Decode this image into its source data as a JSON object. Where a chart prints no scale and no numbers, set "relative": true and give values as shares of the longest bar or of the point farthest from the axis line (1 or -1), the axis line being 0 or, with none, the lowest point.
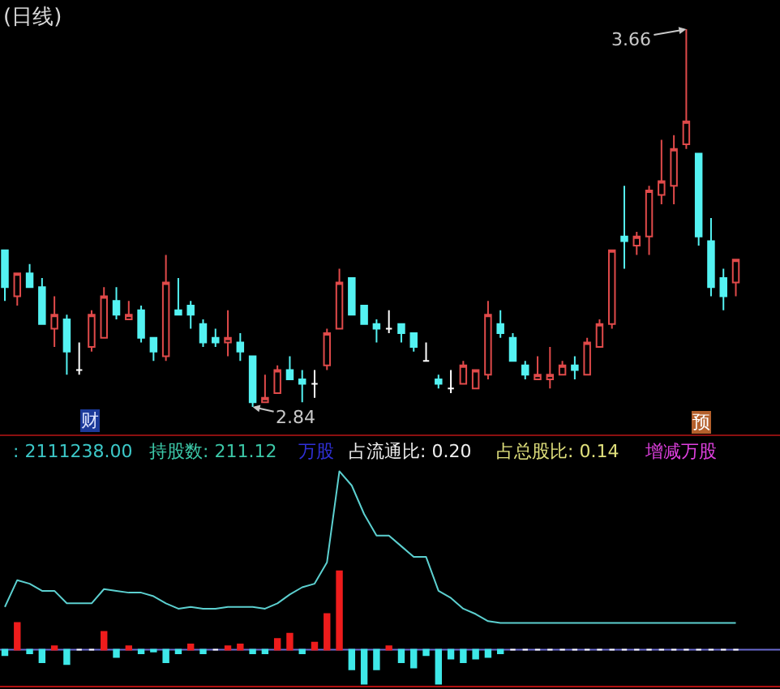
{
  "chart_data": [
    {
      "type": "candlestick",
      "title": "(日线)",
      "categories": [
        null,
        null,
        null,
        null,
        null,
        null,
        null,
        null,
        null,
        null,
        null,
        null,
        null,
        null,
        null,
        null,
        null,
        null,
        null,
        null,
        null,
        null,
        null,
        null,
        null,
        null,
        null,
        null,
        null,
        null,
        null,
        null,
        null,
        null,
        null,
        null,
        null,
        null,
        null,
        null,
        null,
        null,
        null,
        null,
        null,
        null,
        null,
        null,
        null,
        null,
        null,
        null,
        null,
        null,
        null,
        null,
        null,
        null,
        null,
        null
      ],
      "ohlc": [
        [
          3.18,
          3.18,
          3.07,
          3.1
        ],
        [
          3.08,
          3.13,
          3.06,
          3.13
        ],
        [
          3.13,
          3.15,
          3.1,
          3.1
        ],
        [
          3.1,
          3.12,
          3.02,
          3.02
        ],
        [
          3.01,
          3.08,
          2.97,
          3.04
        ],
        [
          3.03,
          3.04,
          2.91,
          2.96
        ],
        [
          2.92,
          2.98,
          2.91,
          2.92
        ],
        [
          2.97,
          3.05,
          2.96,
          3.04
        ],
        [
          2.99,
          3.1,
          2.99,
          3.08
        ],
        [
          3.07,
          3.1,
          3.03,
          3.04
        ],
        [
          3.03,
          3.07,
          3.03,
          3.04
        ],
        [
          3.05,
          3.06,
          2.98,
          2.99
        ],
        [
          2.99,
          2.99,
          2.94,
          2.96
        ],
        [
          2.95,
          3.17,
          2.94,
          3.11
        ],
        [
          3.05,
          3.12,
          3.04,
          3.04
        ],
        [
          3.06,
          3.07,
          3.01,
          3.04
        ],
        [
          3.02,
          3.03,
          2.97,
          2.98
        ],
        [
          2.99,
          3.01,
          2.97,
          2.98
        ],
        [
          2.98,
          3.05,
          2.95,
          2.99
        ],
        [
          2.98,
          3.0,
          2.94,
          2.96
        ],
        [
          2.95,
          2.95,
          2.84,
          2.85
        ],
        [
          2.85,
          2.91,
          2.85,
          2.86
        ],
        [
          2.87,
          2.93,
          2.87,
          2.92
        ],
        [
          2.92,
          2.95,
          2.9,
          2.9
        ],
        [
          2.9,
          2.92,
          2.85,
          2.89
        ],
        [
          2.89,
          2.92,
          2.86,
          2.89
        ],
        [
          2.93,
          3.01,
          2.92,
          3.0
        ],
        [
          3.01,
          3.14,
          3.01,
          3.11
        ],
        [
          3.12,
          3.12,
          3.04,
          3.04
        ],
        [
          3.06,
          3.06,
          3.02,
          3.02
        ],
        [
          3.02,
          3.03,
          2.98,
          3.01
        ],
        [
          3.01,
          3.05,
          3.0,
          3.01
        ],
        [
          3.02,
          3.02,
          2.98,
          3.0
        ],
        [
          3.0,
          3.0,
          2.96,
          2.97
        ],
        [
          2.94,
          2.98,
          2.94,
          2.94
        ],
        [
          2.9,
          2.91,
          2.88,
          2.89
        ],
        [
          2.88,
          2.92,
          2.87,
          2.88
        ],
        [
          2.89,
          2.94,
          2.89,
          2.93
        ],
        [
          2.88,
          2.92,
          2.88,
          2.92
        ],
        [
          2.91,
          3.07,
          2.9,
          3.04
        ],
        [
          3.02,
          3.05,
          2.99,
          3.0
        ],
        [
          2.99,
          3.0,
          2.94,
          2.94
        ],
        [
          2.93,
          2.94,
          2.9,
          2.91
        ],
        [
          2.9,
          2.95,
          2.9,
          2.91
        ],
        [
          2.9,
          2.97,
          2.88,
          2.91
        ],
        [
          2.91,
          2.94,
          2.91,
          2.93
        ],
        [
          2.93,
          2.95,
          2.9,
          2.92
        ],
        [
          2.91,
          2.99,
          2.91,
          2.98
        ],
        [
          2.97,
          3.03,
          2.97,
          3.02
        ],
        [
          3.02,
          3.18,
          3.01,
          3.18
        ],
        [
          3.21,
          3.32,
          3.14,
          3.2
        ],
        [
          3.19,
          3.22,
          3.17,
          3.21
        ],
        [
          3.21,
          3.32,
          3.17,
          3.31
        ],
        [
          3.3,
          3.42,
          3.28,
          3.33
        ],
        [
          3.32,
          3.43,
          3.28,
          3.4
        ],
        [
          3.41,
          3.66,
          3.4,
          3.46
        ],
        [
          3.39,
          3.39,
          3.19,
          3.21
        ],
        [
          3.2,
          3.25,
          3.08,
          3.1
        ],
        [
          3.12,
          3.14,
          3.05,
          3.08
        ],
        [
          3.11,
          3.16,
          3.08,
          3.16
        ]
      ],
      "colors": [
        "#54f2f2",
        "#e04a4a",
        "#54f2f2",
        "#54f2f2",
        "#e04a4a",
        "#54f2f2",
        "#ffffff",
        "#e04a4a",
        "#e04a4a",
        "#54f2f2",
        "#e04a4a",
        "#54f2f2",
        "#54f2f2",
        "#e04a4a",
        "#54f2f2",
        "#54f2f2",
        "#54f2f2",
        "#54f2f2",
        "#e04a4a",
        "#54f2f2",
        "#54f2f2",
        "#e04a4a",
        "#e04a4a",
        "#54f2f2",
        "#54f2f2",
        "#ffffff",
        "#e04a4a",
        "#e04a4a",
        "#54f2f2",
        "#54f2f2",
        "#54f2f2",
        "#ffffff",
        "#54f2f2",
        "#54f2f2",
        "#ffffff",
        "#54f2f2",
        "#ffffff",
        "#e04a4a",
        "#e04a4a",
        "#e04a4a",
        "#54f2f2",
        "#54f2f2",
        "#54f2f2",
        "#e04a4a",
        "#e04a4a",
        "#e04a4a",
        "#54f2f2",
        "#e04a4a",
        "#e04a4a",
        "#e04a4a",
        "#54f2f2",
        "#e04a4a",
        "#e04a4a",
        "#e04a4a",
        "#e04a4a",
        "#e04a4a",
        "#54f2f2",
        "#54f2f2",
        "#54f2f2",
        "#e04a4a"
      ],
      "annotations": [
        "3.66",
        "2.84",
        "财",
        "预"
      ]
    },
    {
      "type": "bar",
      "relative": true,
      "categories": [
        null,
        null,
        null,
        null,
        null,
        null,
        null,
        null,
        null,
        null,
        null,
        null,
        null,
        null,
        null,
        null,
        null,
        null,
        null,
        null,
        null,
        null,
        null,
        null,
        null,
        null,
        null,
        null,
        null,
        null,
        null,
        null,
        null,
        null,
        null,
        null,
        null,
        null,
        null,
        null,
        null,
        null,
        null,
        null,
        null,
        null,
        null,
        null,
        null,
        null,
        null,
        null,
        null,
        null,
        null,
        null,
        null,
        null,
        null,
        null
      ],
      "series": [
        {
          "type": "bar",
          "values": [
            -0.03,
            0.15,
            -0.02,
            -0.07,
            0.02,
            -0.08,
            0,
            0,
            0.1,
            -0.04,
            0.02,
            -0.02,
            -0.01,
            -0.07,
            -0.02,
            0.03,
            -0.02,
            0,
            0.02,
            0.03,
            -0.02,
            -0.02,
            0.06,
            0.09,
            -0.02,
            0.04,
            0.2,
            0.44,
            -0.11,
            -0.19,
            -0.11,
            0.02,
            -0.07,
            -0.1,
            -0.03,
            -0.19,
            -0.05,
            -0.07,
            -0.05,
            -0.04,
            -0.02,
            0,
            0,
            0,
            0,
            0,
            0,
            0,
            0,
            0,
            0,
            0,
            0,
            0,
            0,
            0,
            0,
            0,
            0,
            0
          ],
          "colors": [
            "#3ee8e8",
            "#ee1c1c",
            "#3ee8e8",
            "#3ee8e8",
            "#ee1c1c",
            "#3ee8e8",
            "#ffffff",
            "#ffffff",
            "#ee1c1c",
            "#3ee8e8",
            "#ee1c1c",
            "#3ee8e8",
            "#3ee8e8",
            "#3ee8e8",
            "#3ee8e8",
            "#ee1c1c",
            "#3ee8e8",
            "#ffffff",
            "#ee1c1c",
            "#ee1c1c",
            "#3ee8e8",
            "#3ee8e8",
            "#ee1c1c",
            "#ee1c1c",
            "#3ee8e8",
            "#ee1c1c",
            "#ee1c1c",
            "#ee1c1c",
            "#3ee8e8",
            "#3ee8e8",
            "#3ee8e8",
            "#ee1c1c",
            "#3ee8e8",
            "#3ee8e8",
            "#3ee8e8",
            "#3ee8e8",
            "#3ee8e8",
            "#3ee8e8",
            "#3ee8e8",
            "#3ee8e8",
            "#3ee8e8",
            "#ffffff",
            "#ffffff",
            "#ffffff",
            "#ffffff",
            "#ffffff",
            "#ffffff",
            "#ffffff",
            "#ffffff",
            "#ffffff",
            "#ffffff",
            "#ffffff",
            "#ffffff",
            "#ffffff",
            "#ffffff",
            "#ffffff",
            "#ffffff",
            "#ffffff",
            "#ffffff",
            "#ffffff"
          ]
        },
        {
          "type": "line",
          "color": "#5cd0d0",
          "values": [
            0.24,
            0.39,
            0.37,
            0.33,
            0.33,
            0.26,
            0.26,
            0.26,
            0.34,
            0.33,
            0.32,
            0.32,
            0.3,
            0.26,
            0.23,
            0.24,
            0.23,
            0.23,
            0.24,
            0.24,
            0.24,
            0.23,
            0.26,
            0.31,
            0.35,
            0.37,
            0.49,
            1.0,
            0.92,
            0.76,
            0.64,
            0.64,
            0.58,
            0.52,
            0.52,
            0.33,
            0.29,
            0.23,
            0.2,
            0.16,
            0.15,
            0.15,
            0.15,
            0.15,
            0.15,
            0.15,
            0.15,
            0.15,
            0.15,
            0.15,
            0.15,
            0.15,
            0.15,
            0.15,
            0.15,
            0.15,
            0.15,
            0.15,
            0.15,
            0.15
          ]
        }
      ],
      "ref_lines": [
        {
          "axis": "y",
          "value": 0,
          "color": "#6a6ad0"
        }
      ],
      "annotations": [
        ": 2111238.00",
        "持股数: 211.12",
        "万股",
        "占流通比: 0.20",
        "占总股比: 0.14",
        "增减万股"
      ]
    }
  ]
}
